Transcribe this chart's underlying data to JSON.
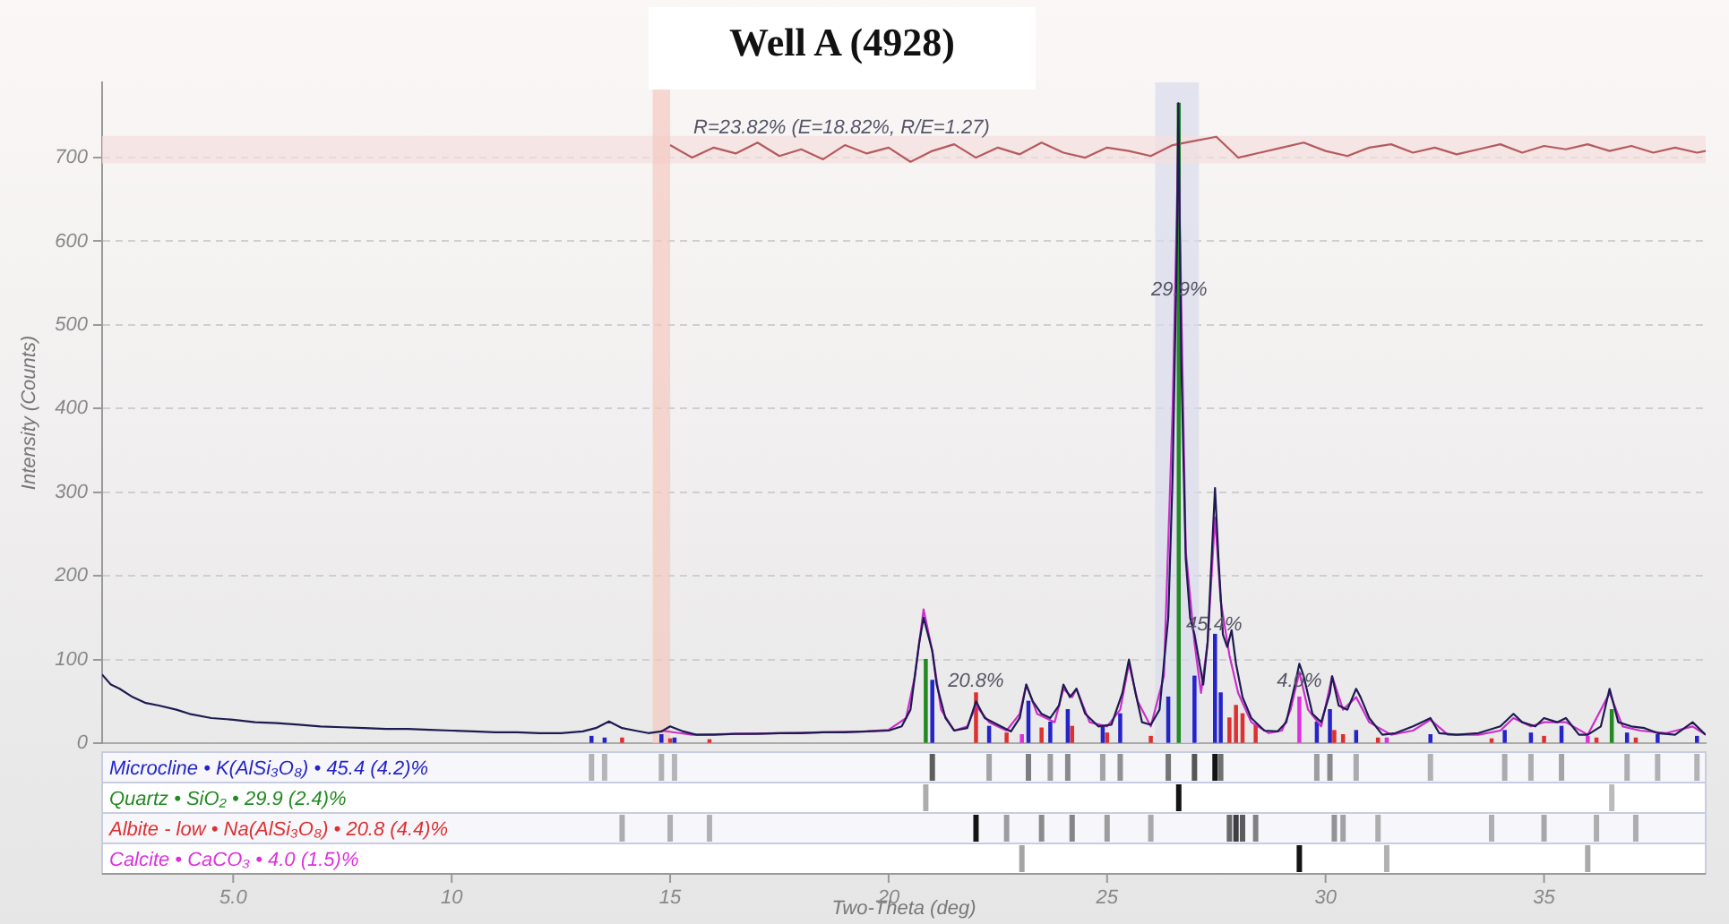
{
  "chart_data": {
    "type": "line",
    "title": "Well A (4928)",
    "xlabel": "Two-Theta (deg)",
    "ylabel": "Intensity (Counts)",
    "xlim": [
      2,
      38.7
    ],
    "xticks": [
      {
        "value": 5,
        "label": "5.0"
      },
      10,
      15,
      20,
      25,
      30,
      35
    ],
    "ylim": [
      0,
      790
    ],
    "yticks": [
      0,
      100,
      200,
      300,
      400,
      500,
      600,
      700
    ],
    "grid": "y",
    "legend": false,
    "marker": "none",
    "line_style": "solid",
    "bands": [
      {
        "axis": "x",
        "from": 26.1,
        "to": 27.1,
        "color": "#d8dcec"
      },
      {
        "axis": "y",
        "from": 693,
        "to": 726,
        "color": "#f3dede"
      },
      {
        "axis": "x",
        "from": 14.6,
        "to": 15.0,
        "color": "#f3c9c0"
      }
    ],
    "annotations": [
      "R=23.82% (E=18.82%, R/E=1.27)",
      {
        "text": "29.9%",
        "x": 26.65,
        "y": 530
      },
      {
        "text": "45.4%",
        "x": 27.45,
        "y": 130
      },
      {
        "text": "20.8%",
        "x": 22.0,
        "y": 62
      },
      {
        "text": "4.0%",
        "x": 29.4,
        "y": 62
      }
    ],
    "series": [
      {
        "type": "line",
        "color": "#1c1c50",
        "x": [
          2.0,
          2.2,
          2.4,
          2.7,
          3.0,
          3.3,
          3.7,
          4.0,
          4.5,
          5.0,
          5.5,
          6.0,
          6.5,
          7.0,
          7.5,
          8.0,
          8.5,
          9.0,
          9.5,
          10.0,
          10.5,
          11.0,
          11.5,
          12.0,
          12.5,
          13.0,
          13.3,
          13.6,
          13.9,
          14.2,
          14.5,
          14.8,
          15.0,
          15.3,
          15.6,
          16.0,
          16.5,
          17.0,
          17.5,
          18.0,
          18.5,
          19.0,
          19.5,
          20.0,
          20.3,
          20.5,
          20.7,
          20.8,
          20.9,
          21.0,
          21.1,
          21.3,
          21.5,
          21.8,
          22.0,
          22.2,
          22.5,
          22.8,
          23.0,
          23.15,
          23.3,
          23.5,
          23.7,
          23.9,
          24.0,
          24.15,
          24.3,
          24.5,
          24.8,
          25.1,
          25.35,
          25.5,
          25.65,
          25.8,
          26.0,
          26.2,
          26.4,
          26.5,
          26.6,
          26.63,
          26.7,
          26.8,
          26.9,
          27.0,
          27.1,
          27.2,
          27.3,
          27.4,
          27.47,
          27.55,
          27.65,
          27.75,
          27.85,
          27.95,
          28.1,
          28.3,
          28.6,
          28.9,
          29.1,
          29.3,
          29.4,
          29.5,
          29.7,
          29.9,
          30.1,
          30.15,
          30.3,
          30.5,
          30.7,
          30.8,
          31.0,
          31.3,
          31.6,
          32.0,
          32.2,
          32.4,
          32.6,
          33.0,
          33.5,
          34.0,
          34.3,
          34.5,
          34.8,
          35.0,
          35.3,
          35.5,
          35.8,
          36.0,
          36.3,
          36.5,
          36.7,
          37.0,
          37.3,
          37.6,
          38.0,
          38.4,
          38.7
        ],
        "values": [
          82,
          70,
          65,
          55,
          48,
          45,
          40,
          35,
          30,
          28,
          25,
          24,
          22,
          20,
          19,
          18,
          17,
          17,
          16,
          15,
          14,
          13,
          13,
          12,
          12,
          14,
          18,
          26,
          18,
          15,
          12,
          14,
          20,
          14,
          10,
          10,
          11,
          11,
          12,
          12,
          13,
          13,
          14,
          15,
          20,
          40,
          120,
          150,
          130,
          110,
          70,
          30,
          15,
          18,
          50,
          30,
          22,
          14,
          30,
          70,
          50,
          35,
          30,
          45,
          70,
          55,
          65,
          35,
          20,
          22,
          60,
          100,
          60,
          25,
          22,
          40,
          150,
          320,
          600,
          765,
          450,
          220,
          150,
          130,
          100,
          70,
          120,
          230,
          305,
          220,
          130,
          115,
          135,
          95,
          55,
          30,
          15,
          14,
          25,
          70,
          95,
          80,
          35,
          25,
          60,
          80,
          45,
          40,
          65,
          55,
          30,
          10,
          12,
          20,
          25,
          30,
          12,
          10,
          12,
          20,
          35,
          25,
          20,
          30,
          25,
          30,
          10,
          10,
          20,
          65,
          25,
          20,
          18,
          12,
          10,
          25,
          10
        ]
      },
      {
        "type": "line",
        "color": "#cc2ecc",
        "x": [
          14.8,
          15.5,
          16.5,
          17.5,
          18.5,
          19.5,
          20.0,
          20.4,
          20.6,
          20.8,
          21.0,
          21.2,
          21.5,
          21.8,
          22.0,
          22.3,
          22.7,
          23.0,
          23.15,
          23.4,
          23.8,
          24.0,
          24.2,
          24.3,
          24.6,
          25.0,
          25.3,
          25.5,
          25.7,
          26.0,
          26.3,
          26.5,
          26.63,
          26.8,
          27.0,
          27.15,
          27.3,
          27.47,
          27.6,
          27.8,
          28.0,
          28.3,
          28.7,
          29.0,
          29.2,
          29.4,
          29.6,
          29.9,
          30.15,
          30.4,
          30.7,
          31.0,
          31.5,
          32.0,
          32.4,
          32.8,
          33.5,
          34.0,
          34.3,
          34.7,
          35.0,
          35.5,
          36.0,
          36.5,
          36.8,
          37.2,
          37.8,
          38.4,
          38.7
        ],
        "values": [
          15,
          10,
          11,
          12,
          13,
          14,
          16,
          30,
          80,
          160,
          110,
          40,
          15,
          20,
          45,
          25,
          15,
          35,
          70,
          35,
          25,
          65,
          55,
          65,
          25,
          20,
          40,
          95,
          50,
          20,
          80,
          400,
          720,
          230,
          120,
          60,
          120,
          270,
          170,
          105,
          60,
          25,
          12,
          15,
          40,
          85,
          40,
          20,
          80,
          40,
          55,
          25,
          10,
          15,
          28,
          10,
          10,
          15,
          30,
          20,
          25,
          25,
          10,
          60,
          20,
          15,
          12,
          20,
          10
        ]
      },
      {
        "type": "line",
        "color": "#b55a5e",
        "x": [
          15.0,
          15.5,
          16.0,
          16.5,
          17.0,
          17.5,
          18.0,
          18.5,
          19.0,
          19.5,
          20.0,
          20.5,
          21.0,
          21.5,
          22.0,
          22.5,
          23.0,
          23.5,
          24.0,
          24.5,
          25.0,
          25.5,
          26.0,
          26.5,
          27.0,
          27.5,
          28.0,
          28.5,
          29.0,
          29.5,
          30.0,
          30.5,
          31.0,
          31.5,
          32.0,
          32.5,
          33.0,
          33.5,
          34.0,
          34.5,
          35.0,
          35.5,
          36.0,
          36.5,
          37.0,
          37.5,
          38.0,
          38.5,
          38.7
        ],
        "values": [
          715,
          700,
          712,
          705,
          718,
          702,
          710,
          698,
          715,
          705,
          712,
          695,
          708,
          716,
          700,
          712,
          704,
          718,
          706,
          700,
          712,
          708,
          702,
          715,
          720,
          725,
          700,
          706,
          712,
          718,
          708,
          702,
          712,
          716,
          706,
          712,
          704,
          710,
          716,
          706,
          714,
          710,
          716,
          708,
          714,
          706,
          712,
          706,
          708
        ]
      },
      {
        "type": "bar",
        "name": "Microcline • K(AlSi₃O₈) • 45.4 (4.2)%",
        "color": "#2424c8",
        "x": [
          13.2,
          13.5,
          14.8,
          15.1,
          21.0,
          22.3,
          23.2,
          23.7,
          24.1,
          24.9,
          25.3,
          26.4,
          27.0,
          27.47,
          27.6,
          29.8,
          30.1,
          30.7,
          32.4,
          34.1,
          34.7,
          35.4,
          36.9,
          37.6,
          38.5
        ],
        "values": [
          8,
          6,
          10,
          6,
          75,
          20,
          50,
          25,
          40,
          20,
          35,
          55,
          80,
          130,
          60,
          25,
          40,
          15,
          10,
          15,
          12,
          20,
          12,
          10,
          8
        ]
      },
      {
        "type": "bar",
        "name": "Quartz • SiO₂ • 29.9 (2.4)%",
        "color": "#238a23",
        "x": [
          20.85,
          26.64,
          36.55
        ],
        "values": [
          100,
          765,
          40
        ]
      },
      {
        "type": "bar",
        "name": "Albite - low • Na(AlSi₃O₈) • 20.8 (4.4)%",
        "color": "#dd3030",
        "x": [
          13.9,
          15.0,
          15.9,
          22.0,
          22.7,
          23.5,
          24.2,
          25.0,
          26.0,
          27.8,
          27.95,
          28.1,
          28.4,
          30.2,
          30.4,
          31.2,
          33.8,
          35.0,
          36.2,
          37.1
        ],
        "values": [
          6,
          5,
          4,
          60,
          12,
          18,
          20,
          12,
          8,
          30,
          45,
          35,
          22,
          15,
          10,
          6,
          5,
          8,
          6,
          6
        ]
      },
      {
        "type": "bar",
        "name": "Calcite • CaCO₃ • 4.0 (1.5)%",
        "color": "#dd30dd",
        "x": [
          23.05,
          29.4,
          31.4,
          36.0
        ],
        "values": [
          10,
          55,
          6,
          8
        ]
      }
    ]
  }
}
